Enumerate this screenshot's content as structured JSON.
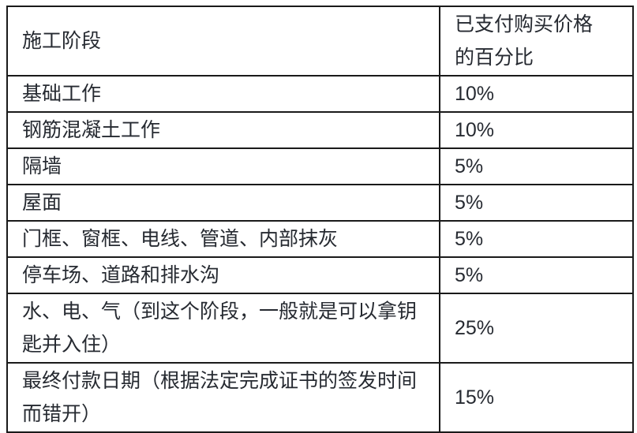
{
  "table": {
    "headers": {
      "stage": "施工阶段",
      "percentage": "已支付购买价格的百分比"
    },
    "rows": [
      {
        "stage": "基础工作",
        "percentage": "10%"
      },
      {
        "stage": "钢筋混凝土工作",
        "percentage": "10%"
      },
      {
        "stage": "隔墙",
        "percentage": "5%"
      },
      {
        "stage": "屋面",
        "percentage": "5%"
      },
      {
        "stage": "门框、窗框、电线、管道、内部抹灰",
        "percentage": "5%"
      },
      {
        "stage": "停车场、道路和排水沟",
        "percentage": "5%"
      },
      {
        "stage": "水、电、气（到这个阶段，一般就是可以拿钥匙并入住）",
        "percentage": "25%"
      },
      {
        "stage": "最终付款日期（根据法定完成证书的签发时间而错开）",
        "percentage": "15%"
      }
    ],
    "colors": {
      "border": "#1a1a1a",
      "text": "#262a31",
      "background": "#ffffff"
    }
  }
}
